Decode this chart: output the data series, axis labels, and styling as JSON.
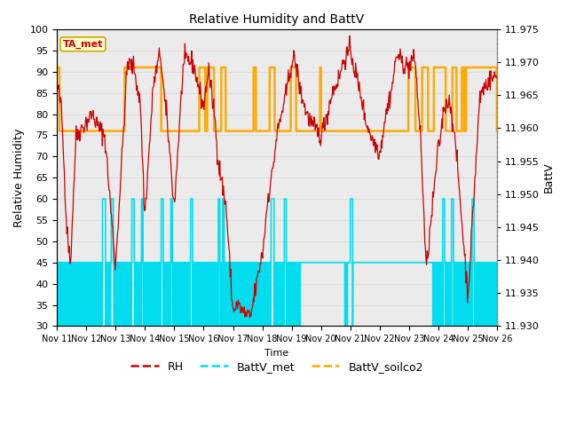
{
  "title": "Relative Humidity and BattV",
  "xlabel": "Time",
  "ylabel_left": "Relative Humidity",
  "ylabel_right": "BattV",
  "annotation_text": "TA_met",
  "annotation_color": "#cc0000",
  "annotation_bg": "#ffffcc",
  "annotation_border": "#ccaa00",
  "ylim_left": [
    30,
    100
  ],
  "ylim_right": [
    11.93,
    11.975
  ],
  "xtick_labels": [
    "Nov 11",
    "Nov 12",
    "Nov 13",
    "Nov 14",
    "Nov 15",
    "Nov 16",
    "Nov 17",
    "Nov 18",
    "Nov 19",
    "Nov 20",
    "Nov 21",
    "Nov 22",
    "Nov 23",
    "Nov 24",
    "Nov 25",
    "Nov 26"
  ],
  "ytick_left": [
    30,
    35,
    40,
    45,
    50,
    55,
    60,
    65,
    70,
    75,
    80,
    85,
    90,
    95,
    100
  ],
  "ytick_right": [
    11.93,
    11.935,
    11.94,
    11.945,
    11.95,
    11.955,
    11.96,
    11.965,
    11.97,
    11.975
  ],
  "legend_labels": [
    "RH",
    "BattV_met",
    "BattV_soilco2"
  ],
  "legend_colors": [
    "#cc0000",
    "#00ddee",
    "#ffaa00"
  ],
  "grid_color": "#dddddd",
  "bg_color": "#ebebeb",
  "rh_color": "#cc0000",
  "battv_met_color": "#00ddee",
  "battv_soilco2_color": "#ffaa00"
}
